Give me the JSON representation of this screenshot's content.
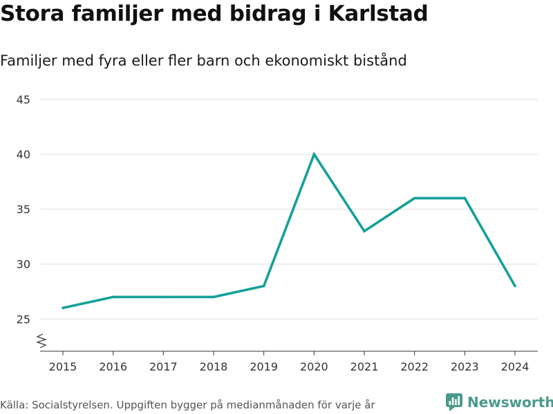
{
  "title": "Stora familjer med bidrag i Karlstad",
  "subtitle": "Familjer med fyra eller fler barn och ekonomiskt bistånd",
  "source": "Källa: Socialstyrelsen. Uppgiften bygger på medianmånaden för varje år",
  "brand": {
    "name": "Newsworthy",
    "color": "#4a9a8c"
  },
  "colors": {
    "line": "#14a099",
    "grid": "#dddddd",
    "axis": "#333333"
  },
  "chart_data": {
    "type": "line",
    "title": "Stora familjer med bidrag i Karlstad",
    "subtitle": "Familjer med fyra eller fler barn och ekonomiskt bistånd",
    "xlabel": "",
    "ylabel": "",
    "categories": [
      "2015",
      "2016",
      "2017",
      "2018",
      "2019",
      "2020",
      "2021",
      "2022",
      "2023",
      "2024"
    ],
    "series": [
      {
        "name": "Familjer med fyra eller fler barn och ekonomiskt bistånd",
        "values": [
          26,
          27,
          27,
          27,
          28,
          40,
          33,
          36,
          36,
          28
        ]
      }
    ],
    "yticks": [
      25,
      30,
      35,
      40,
      45
    ],
    "ylim": [
      22,
      45
    ],
    "grid": true,
    "axis_break": true,
    "legend": "none"
  }
}
